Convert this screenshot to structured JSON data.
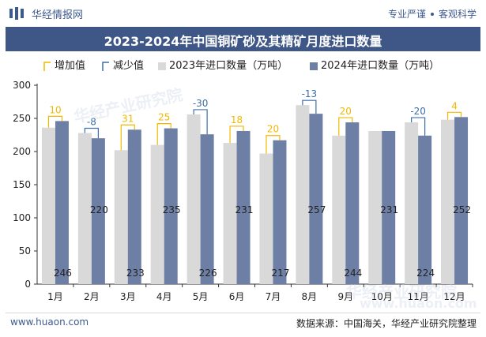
{
  "header": {
    "brand": "华经情报网",
    "right_1": "专业严谨",
    "right_2": "客观科学"
  },
  "title": "2023-2024年中国铜矿砂及其精矿月度进口数量",
  "legend": {
    "increase": "增加值",
    "decrease": "减少值",
    "series_2023": "2023年进口数量（万吨）",
    "series_2024": "2024年进口数量（万吨）"
  },
  "footer": {
    "website": "www.huaon.com",
    "source": "数据来源：中国海关，华经产业研究院整理"
  },
  "watermarks": [
    "华经产业研究院",
    "华经产业研究院",
    "www.huaon.com"
  ],
  "colors": {
    "bar_2023": "#d9d9d9",
    "bar_2024": "#6e7fa6",
    "increase": "#f2b800",
    "decrease": "#3d6fa8",
    "title_bg": "#3f5786"
  },
  "chart_data": {
    "type": "bar",
    "categories": [
      "1月",
      "2月",
      "3月",
      "4月",
      "5月",
      "6月",
      "7月",
      "8月",
      "9月",
      "10月",
      "11月",
      "12月"
    ],
    "series": [
      {
        "name": "2023年进口数量（万吨）",
        "values": [
          236,
          228,
          202,
          210,
          256,
          213,
          197,
          270,
          224,
          231,
          244,
          248
        ]
      },
      {
        "name": "2024年进口数量（万吨）",
        "values": [
          246,
          220,
          233,
          235,
          226,
          231,
          217,
          257,
          244,
          231,
          224,
          252
        ]
      }
    ],
    "changes": [
      "10",
      "-8",
      "31",
      "25",
      "-30",
      "18",
      "20",
      "-13",
      "20",
      "",
      "-20",
      "4"
    ],
    "bar_labels_2024": [
      "246",
      "220",
      "233",
      "235",
      "226",
      "231",
      "217",
      "257",
      "244",
      "231",
      "224",
      "252"
    ],
    "yticks": [
      "0",
      "50",
      "100",
      "150",
      "200",
      "250",
      "300"
    ],
    "ylim": [
      0,
      300
    ]
  }
}
